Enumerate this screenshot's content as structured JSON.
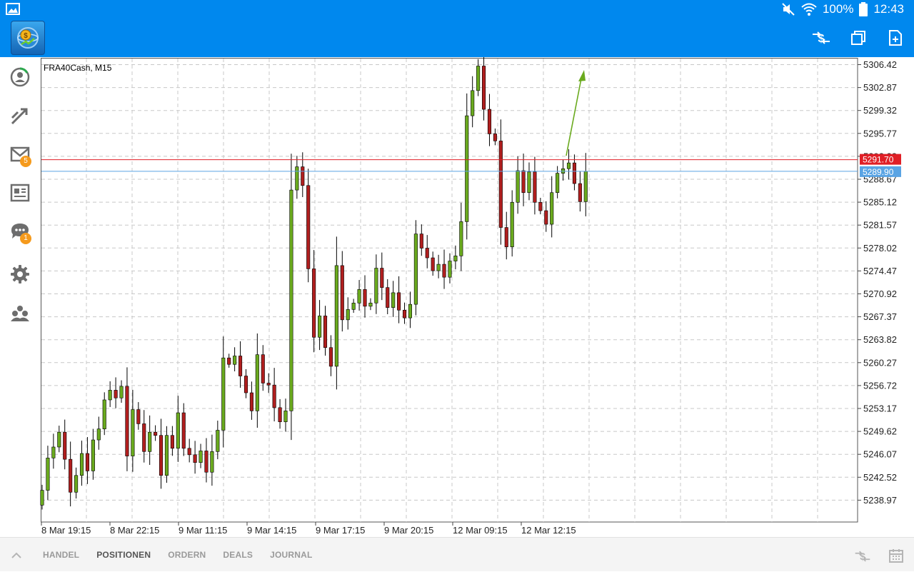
{
  "status_bar": {
    "battery_percent": "100%",
    "time": "12:43"
  },
  "chart": {
    "symbol_label": "FRA40Cash, M15",
    "price_axis": [
      "5306.42",
      "5302.87",
      "5299.32",
      "5295.77",
      "5292.22",
      "5288.67",
      "5285.12",
      "5281.57",
      "5278.02",
      "5274.47",
      "5270.92",
      "5267.37",
      "5263.82",
      "5260.27",
      "5256.72",
      "5253.17",
      "5249.62",
      "5246.07",
      "5242.52",
      "5238.97"
    ],
    "time_axis": [
      "8 Mar 19:15",
      "8 Mar 22:15",
      "9 Mar 11:15",
      "9 Mar 14:15",
      "9 Mar 17:15",
      "9 Mar 20:15",
      "12 Mar 09:15",
      "12 Mar 12:15"
    ],
    "ask_price": "5291.70",
    "bid_price": "5289.90",
    "colors": {
      "bull": "#6aaa1e",
      "bear": "#b01e1e",
      "ask_line": "#e01f26",
      "bid_line": "#5aa4e4",
      "grid": "#c8c8c8",
      "arrow": "#6aaa1e"
    }
  },
  "sidebar": {
    "mail_badge": "5",
    "chat_badge": "1"
  },
  "bottom_tabs": [
    "HANDEL",
    "POSITIONEN",
    "ORDERN",
    "DEALS",
    "JOURNAL"
  ],
  "active_tab": "POSITIONEN",
  "icons": {
    "appbar": [
      "trade-icon",
      "window-icon",
      "new-document-icon"
    ],
    "sidebar": [
      "account-icon",
      "trade-arrows-icon",
      "mail-icon",
      "news-icon",
      "chat-icon",
      "settings-icon",
      "community-icon"
    ]
  }
}
